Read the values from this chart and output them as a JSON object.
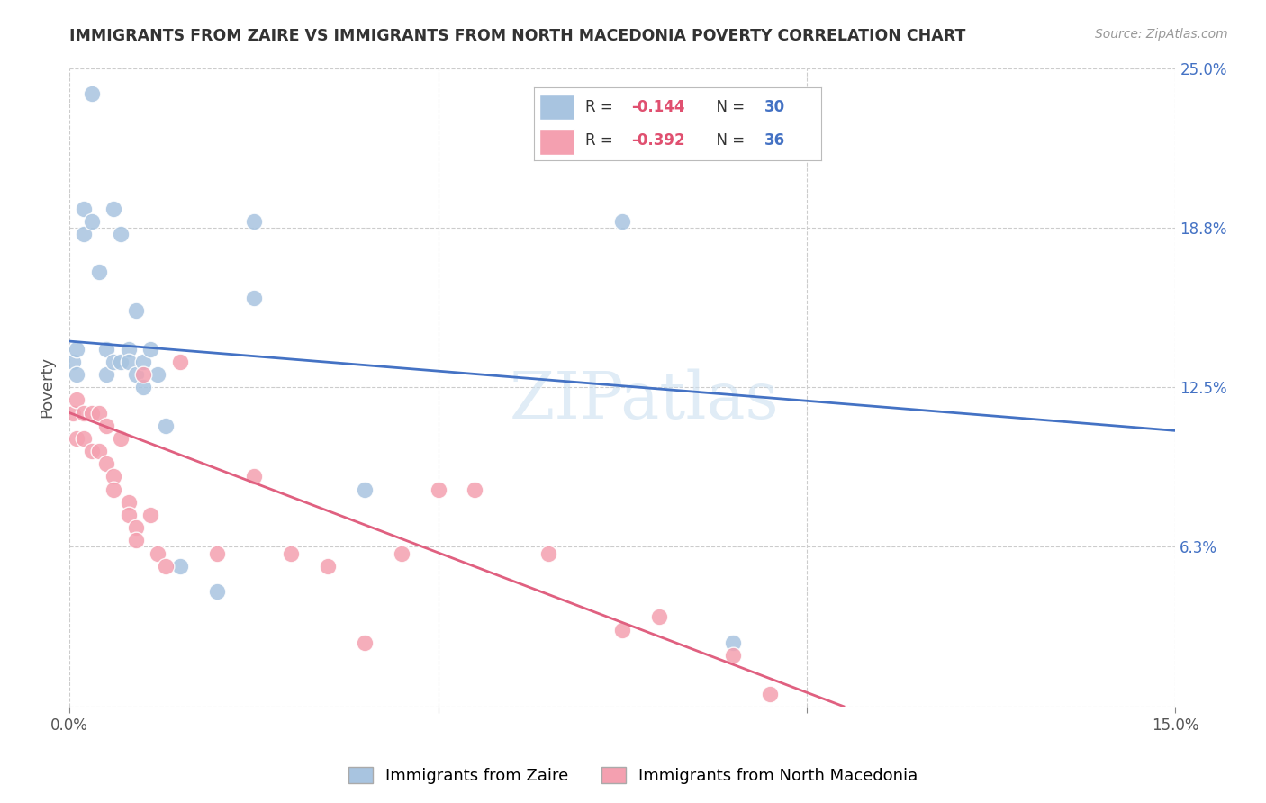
{
  "title": "IMMIGRANTS FROM ZAIRE VS IMMIGRANTS FROM NORTH MACEDONIA POVERTY CORRELATION CHART",
  "source": "Source: ZipAtlas.com",
  "ylabel": "Poverty",
  "xlim": [
    0.0,
    0.15
  ],
  "ylim": [
    0.0,
    0.25
  ],
  "grid_color": "#cccccc",
  "background_color": "#ffffff",
  "watermark": "ZIPatlas",
  "zaire_color": "#a8c4e0",
  "macedonia_color": "#f4a0b0",
  "zaire_line_color": "#4472c4",
  "macedonia_line_color": "#e06080",
  "zaire_scatter_x": [
    0.0005,
    0.001,
    0.001,
    0.002,
    0.002,
    0.003,
    0.003,
    0.004,
    0.005,
    0.005,
    0.006,
    0.006,
    0.007,
    0.007,
    0.008,
    0.008,
    0.009,
    0.009,
    0.01,
    0.01,
    0.011,
    0.012,
    0.013,
    0.015,
    0.02,
    0.025,
    0.025,
    0.04,
    0.075,
    0.09
  ],
  "zaire_scatter_y": [
    0.135,
    0.14,
    0.13,
    0.195,
    0.185,
    0.24,
    0.19,
    0.17,
    0.14,
    0.13,
    0.195,
    0.135,
    0.185,
    0.135,
    0.14,
    0.135,
    0.155,
    0.13,
    0.135,
    0.125,
    0.14,
    0.13,
    0.11,
    0.055,
    0.045,
    0.16,
    0.19,
    0.085,
    0.19,
    0.025
  ],
  "macedonia_scatter_x": [
    0.0005,
    0.001,
    0.001,
    0.002,
    0.002,
    0.003,
    0.003,
    0.004,
    0.004,
    0.005,
    0.005,
    0.006,
    0.006,
    0.007,
    0.008,
    0.008,
    0.009,
    0.009,
    0.01,
    0.011,
    0.012,
    0.013,
    0.015,
    0.02,
    0.025,
    0.03,
    0.035,
    0.04,
    0.045,
    0.05,
    0.055,
    0.065,
    0.075,
    0.08,
    0.09,
    0.095
  ],
  "macedonia_scatter_y": [
    0.115,
    0.12,
    0.105,
    0.115,
    0.105,
    0.115,
    0.1,
    0.115,
    0.1,
    0.11,
    0.095,
    0.09,
    0.085,
    0.105,
    0.08,
    0.075,
    0.07,
    0.065,
    0.13,
    0.075,
    0.06,
    0.055,
    0.135,
    0.06,
    0.09,
    0.06,
    0.055,
    0.025,
    0.06,
    0.085,
    0.085,
    0.06,
    0.03,
    0.035,
    0.02,
    0.005
  ],
  "zaire_line_x0": 0.0,
  "zaire_line_x1": 0.15,
  "zaire_line_y0": 0.143,
  "zaire_line_y1": 0.108,
  "macedonia_line_x0": 0.0,
  "macedonia_line_x1": 0.105,
  "macedonia_line_y0": 0.115,
  "macedonia_line_y1": 0.0
}
